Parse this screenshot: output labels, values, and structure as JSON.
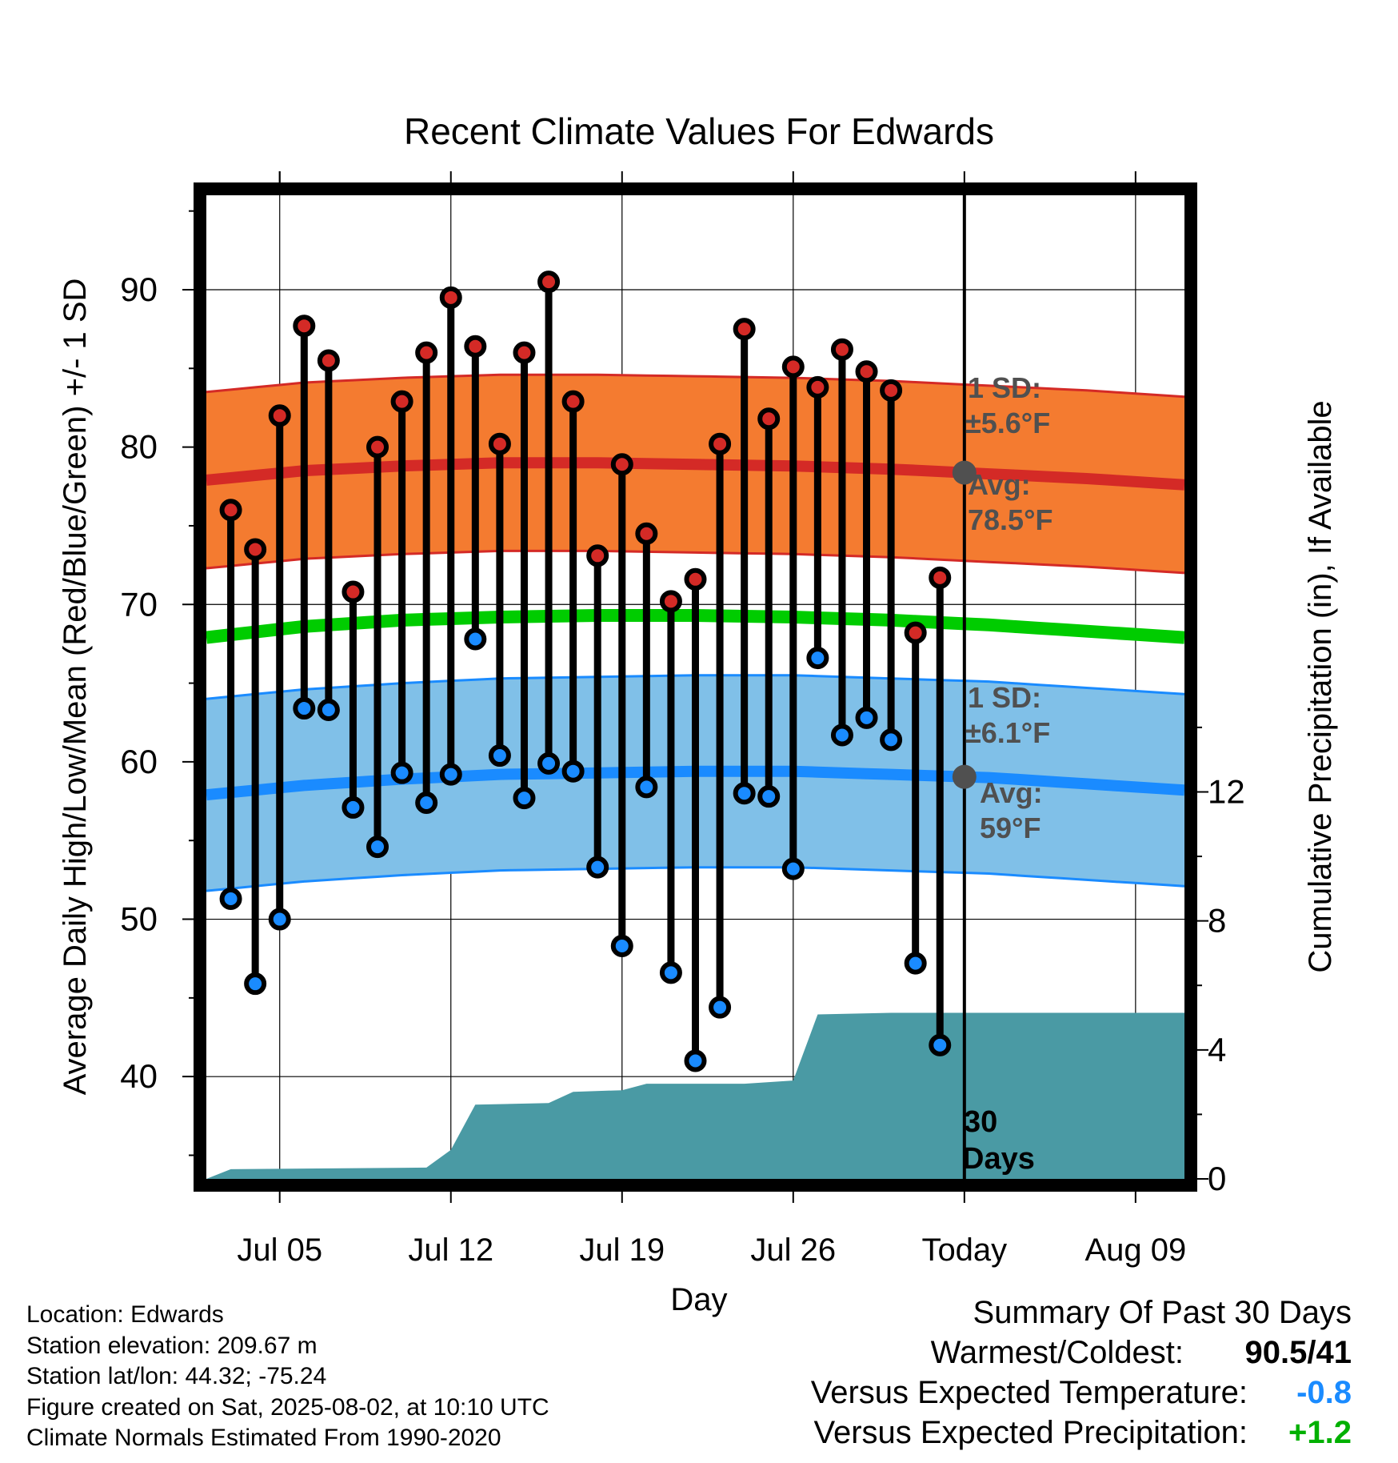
{
  "chart_data": {
    "type": "line",
    "title": "Recent Climate Values For Edwards",
    "xlabel": "Day",
    "ylabel": "Average Daily High/Low/Mean (Red/Blue/Green) +/- 1 SD",
    "y2label": "Cumulative Precipitation (in), If Available",
    "x_tick_labels": [
      "Jul 05",
      "Jul 12",
      "Jul 19",
      "Jul 26",
      "Today",
      "Aug 09"
    ],
    "x_tick_dates": [
      "2025-07-05",
      "2025-07-12",
      "2025-07-19",
      "2025-07-26",
      "2025-08-02",
      "2025-08-09"
    ],
    "xlim": [
      "2025-07-02",
      "2025-08-11"
    ],
    "today": "2025-08-02",
    "ylim": [
      33.5,
      96
    ],
    "y_ticks": [
      40,
      50,
      60,
      70,
      80,
      90
    ],
    "y2lim": [
      0,
      30.5
    ],
    "y2_ticks": [
      0,
      4,
      8,
      12
    ],
    "grid": true,
    "dates": [
      "2025-07-03",
      "2025-07-04",
      "2025-07-05",
      "2025-07-06",
      "2025-07-07",
      "2025-07-08",
      "2025-07-09",
      "2025-07-10",
      "2025-07-11",
      "2025-07-12",
      "2025-07-13",
      "2025-07-14",
      "2025-07-15",
      "2025-07-16",
      "2025-07-17",
      "2025-07-18",
      "2025-07-19",
      "2025-07-20",
      "2025-07-21",
      "2025-07-22",
      "2025-07-23",
      "2025-07-24",
      "2025-07-25",
      "2025-07-26",
      "2025-07-27",
      "2025-07-28",
      "2025-07-29",
      "2025-07-30",
      "2025-07-31",
      "2025-08-01"
    ],
    "highs": [
      76.0,
      73.5,
      82.0,
      87.7,
      85.5,
      70.8,
      80.0,
      82.9,
      86.0,
      89.5,
      86.4,
      80.2,
      86.0,
      90.5,
      82.9,
      73.1,
      78.9,
      74.5,
      70.2,
      71.6,
      80.2,
      87.5,
      81.8,
      85.1,
      83.8,
      86.2,
      84.8,
      83.6,
      68.2,
      71.7
    ],
    "lows": [
      51.3,
      45.9,
      50.0,
      63.4,
      63.3,
      57.1,
      54.6,
      59.3,
      57.4,
      59.2,
      67.8,
      60.4,
      57.7,
      59.9,
      59.4,
      53.3,
      48.3,
      58.4,
      46.6,
      41.0,
      44.4,
      58.0,
      57.8,
      53.2,
      66.6,
      61.7,
      62.8,
      61.4,
      47.2,
      42.0
    ],
    "normal_high": {
      "dates": [
        "2025-07-02",
        "2025-07-06",
        "2025-07-10",
        "2025-07-14",
        "2025-07-18",
        "2025-07-22",
        "2025-07-26",
        "2025-07-30",
        "2025-08-03",
        "2025-08-07",
        "2025-08-11"
      ],
      "values": [
        77.9,
        78.5,
        78.8,
        79.0,
        79.0,
        78.9,
        78.8,
        78.6,
        78.3,
        78.0,
        77.6
      ]
    },
    "normal_high_sd": 5.6,
    "normal_low": {
      "dates": [
        "2025-07-02",
        "2025-07-06",
        "2025-07-10",
        "2025-07-14",
        "2025-07-18",
        "2025-07-22",
        "2025-07-26",
        "2025-07-30",
        "2025-08-03",
        "2025-08-07",
        "2025-08-11"
      ],
      "values": [
        57.9,
        58.5,
        58.9,
        59.2,
        59.3,
        59.4,
        59.4,
        59.2,
        59.0,
        58.6,
        58.2
      ]
    },
    "normal_low_sd": 6.1,
    "normal_mean": {
      "dates": [
        "2025-07-02",
        "2025-07-06",
        "2025-07-10",
        "2025-07-14",
        "2025-07-18",
        "2025-07-22",
        "2025-07-26",
        "2025-07-30",
        "2025-08-03",
        "2025-08-07",
        "2025-08-11"
      ],
      "values": [
        67.9,
        68.6,
        69.0,
        69.2,
        69.3,
        69.3,
        69.2,
        69.0,
        68.7,
        68.3,
        67.9
      ]
    },
    "precip_cumulative": {
      "dates": [
        "2025-07-02",
        "2025-07-03",
        "2025-07-11",
        "2025-07-12",
        "2025-07-13",
        "2025-07-16",
        "2025-07-17",
        "2025-07-19",
        "2025-07-20",
        "2025-07-24",
        "2025-07-26",
        "2025-07-27",
        "2025-07-30",
        "2025-08-02",
        "2025-08-11"
      ],
      "values": [
        0,
        0.3,
        0.35,
        0.9,
        2.3,
        2.35,
        2.7,
        2.75,
        2.95,
        2.95,
        3.05,
        5.1,
        5.15,
        5.15,
        5.15
      ]
    },
    "annotations": {
      "high_sd": [
        "1 SD:",
        "±5.6°F"
      ],
      "high_avg": [
        "Avg:",
        "78.5°F"
      ],
      "low_sd": [
        "1 SD:",
        "±6.1°F"
      ],
      "low_avg": [
        "Avg:",
        "59°F"
      ],
      "days": [
        "30",
        "Days"
      ]
    },
    "colors": {
      "high_band": "#f47b30",
      "high_line": "#d42a26",
      "low_band": "#80c0e8",
      "low_line": "#1a8bff",
      "mean_line": "#00cc00",
      "precip": "#4a9aa4",
      "high_dot": "#d42a26",
      "low_dot": "#1a8bff",
      "annotation": "#505050"
    }
  },
  "info": {
    "location": "Location: Edwards",
    "elevation": "Station elevation: 209.67 m",
    "latlon": "Station lat/lon: 44.32; -75.24",
    "created": "Figure created on Sat, 2025-08-02, at 10:10 UTC",
    "normals": "Climate Normals Estimated From 1990-2020"
  },
  "summary": {
    "title": "Summary Of Past 30 Days",
    "warmest_label": "Warmest/Coldest:",
    "warmest_value": "90.5/41",
    "temp_label": "Versus Expected Temperature:",
    "temp_value": "-0.8",
    "temp_color": "#1a8bff",
    "precip_label": "Versus Expected Precipitation:",
    "precip_value": "+1.2",
    "precip_color": "#00b000"
  }
}
